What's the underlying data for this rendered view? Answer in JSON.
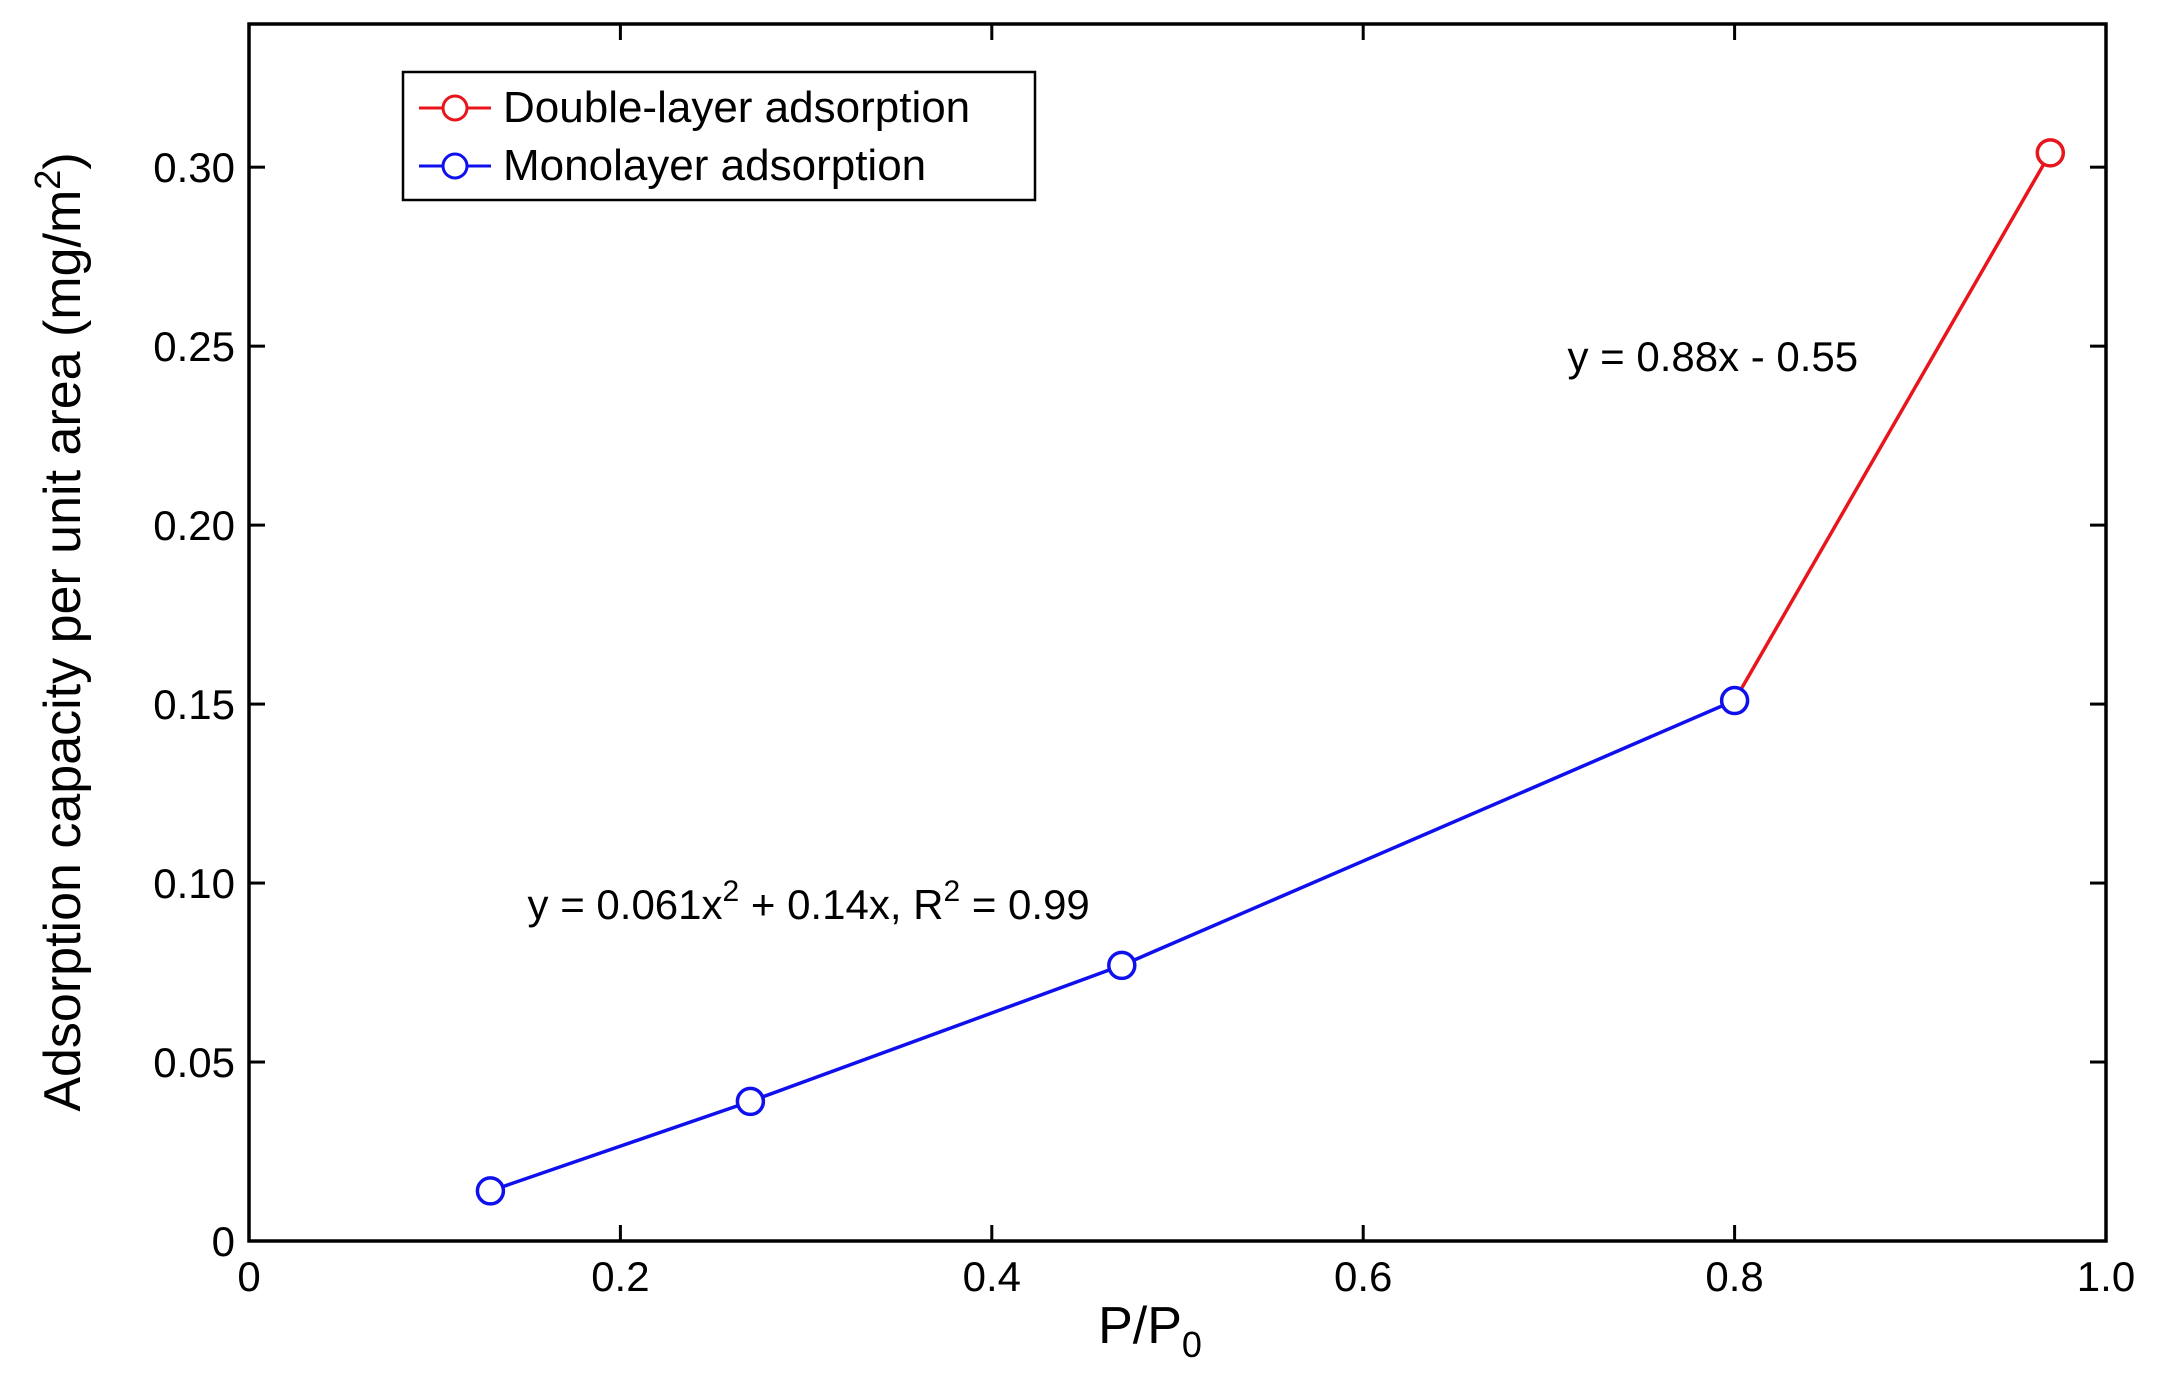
{
  "chart_data": {
    "type": "line",
    "title": "",
    "xlabel": {
      "main": "P/P",
      "sub": "0"
    },
    "ylabel": {
      "main": "Adsorption capacity per unit area (mg/m",
      "sup": "2",
      "tail": ")"
    },
    "xlim": [
      0,
      1.0
    ],
    "ylim": [
      0,
      0.34
    ],
    "xticks": [
      {
        "value": 0,
        "label": "0"
      },
      {
        "value": 0.2,
        "label": "0.2"
      },
      {
        "value": 0.4,
        "label": "0.4"
      },
      {
        "value": 0.6,
        "label": "0.6"
      },
      {
        "value": 0.8,
        "label": "0.8"
      },
      {
        "value": 1.0,
        "label": "1.0"
      }
    ],
    "yticks": [
      {
        "value": 0,
        "label": "0"
      },
      {
        "value": 0.05,
        "label": "0.05"
      },
      {
        "value": 0.1,
        "label": "0.10"
      },
      {
        "value": 0.15,
        "label": "0.15"
      },
      {
        "value": 0.2,
        "label": "0.20"
      },
      {
        "value": 0.25,
        "label": "0.25"
      },
      {
        "value": 0.3,
        "label": "0.30"
      }
    ],
    "series": [
      {
        "name": "Double-layer adsorption",
        "color": "#e8161c",
        "x": [
          0.8,
          0.97
        ],
        "y": [
          0.151,
          0.304
        ],
        "markers": [
          false,
          true
        ]
      },
      {
        "name": "Monolayer adsorption",
        "color": "#1010ee",
        "x": [
          0.13,
          0.27,
          0.47,
          0.8
        ],
        "y": [
          0.014,
          0.039,
          0.077,
          0.151
        ],
        "markers": [
          true,
          true,
          true,
          true
        ]
      }
    ],
    "legend": {
      "placement": "top-left",
      "entries": [
        "Double-layer adsorption",
        "Monolayer adsorption"
      ]
    },
    "annotations": [
      {
        "id": "double-layer-equation",
        "x": 0.71,
        "y": 0.243,
        "parts": [
          {
            "t": "y = 0.88x - 0.55"
          }
        ]
      },
      {
        "id": "monolayer-equation",
        "x": 0.15,
        "y": 0.09,
        "parts": [
          {
            "t": "y = 0.061x"
          },
          {
            "t": "2",
            "sup": true
          },
          {
            "t": " + 0.14x, R"
          },
          {
            "t": "2",
            "sup": true
          },
          {
            "t": " = 0.99"
          }
        ]
      }
    ],
    "grid": false
  }
}
